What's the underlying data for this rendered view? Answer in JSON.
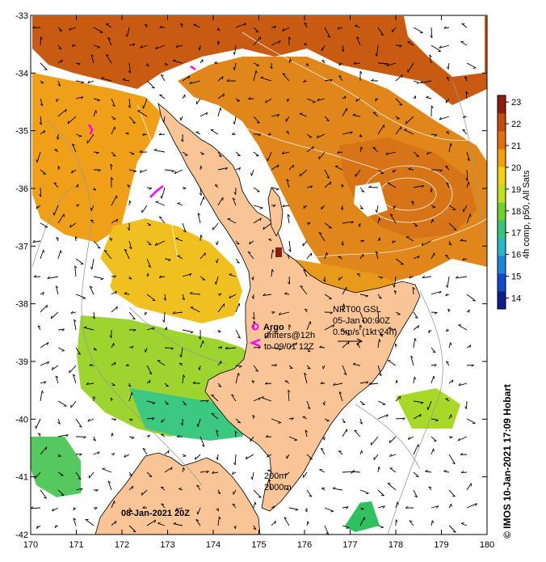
{
  "map": {
    "lon_range": [
      170,
      180
    ],
    "lat_range": [
      -42,
      -33
    ],
    "lon_ticks": [
      "170",
      "171",
      "172",
      "173",
      "174",
      "175",
      "176",
      "177",
      "178",
      "179",
      "180"
    ],
    "lat_ticks": [
      "-33",
      "-34",
      "-35",
      "-36",
      "-37",
      "-38",
      "-39",
      "-40",
      "-41",
      "-42"
    ],
    "land_color": "#f9c496",
    "coast_color": "#000000",
    "bathy_color": "#9a9a9a"
  },
  "colorbar": {
    "label": "4h comp, p50, All Sats",
    "ticks": [
      "14",
      "15",
      "16",
      "17",
      "18",
      "19",
      "20",
      "21",
      "22",
      "23"
    ],
    "range": [
      13.5,
      23.3
    ],
    "colors": [
      "#0d1f8a",
      "#1446c8",
      "#1e86d8",
      "#2ab8c8",
      "#38c47a",
      "#70d030",
      "#c0e020",
      "#f0d010",
      "#f0a010",
      "#e07010",
      "#c04a10",
      "#8a1e10"
    ]
  },
  "legend": {
    "argo_label": "Argo",
    "drifters_line1": "drifters@12h",
    "drifters_line2": "to 09/01 12Z",
    "currents_title": "NRT00 GSL",
    "currents_time": "05-Jan 00:00Z",
    "currents_scale": "0.5m/s (1kt 24h)",
    "isobath_1": "200m",
    "isobath_2": "2000m"
  },
  "date_label": "08-Jan-2021 20Z",
  "credit": "© IMOS 10-Jan-2021 17:09 Hobart"
}
